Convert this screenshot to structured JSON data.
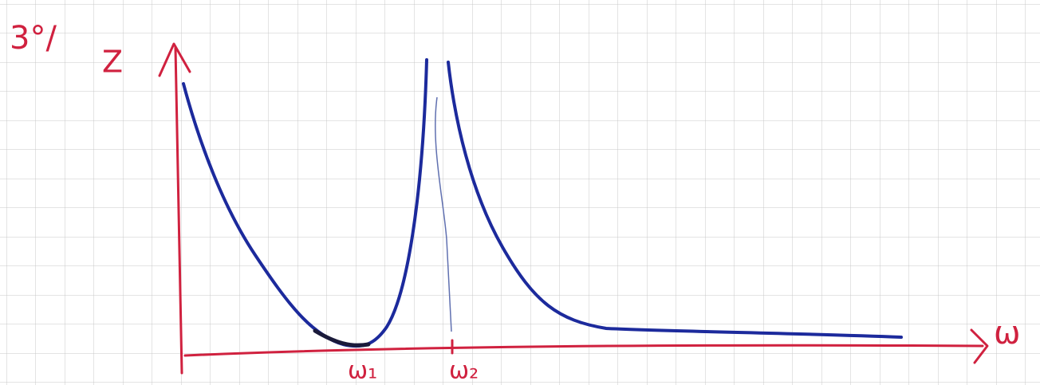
{
  "axes": {
    "y_label_prefix": "3°/",
    "y_label": "Z",
    "x_label": "ω"
  },
  "markers": [
    {
      "label": "ω₁"
    },
    {
      "label": "ω₂"
    }
  ]
}
